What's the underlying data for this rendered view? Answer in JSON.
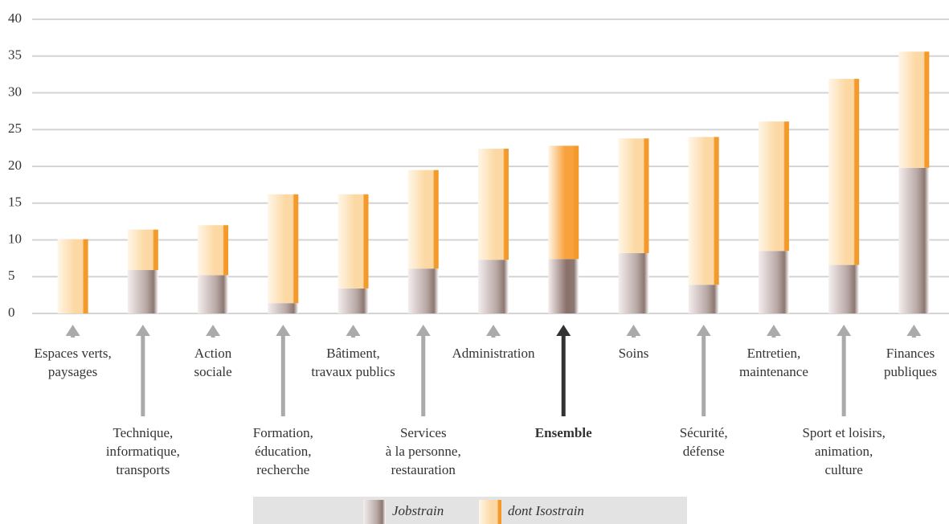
{
  "chart_data": {
    "type": "stacked_bar",
    "categories": [
      [
        "Espaces verts,",
        "paysages"
      ],
      [
        "Technique,",
        "informatique,",
        "transports"
      ],
      [
        "Action",
        "sociale"
      ],
      [
        "Formation,",
        "éducation,",
        "recherche"
      ],
      [
        "Bâtiment,",
        "travaux publics"
      ],
      [
        "Services",
        "à la personne,",
        "restauration"
      ],
      [
        "Administration"
      ],
      [
        "Ensemble"
      ],
      [
        "Soins"
      ],
      [
        "Sécurité,",
        "défense"
      ],
      [
        "Entretien,",
        "maintenance"
      ],
      [
        "Sport et loisirs,",
        "animation,",
        "culture"
      ],
      [
        "Finances",
        "publiques"
      ]
    ],
    "series": [
      {
        "name": "Jobstrain",
        "colors": [
          "#b9a9a6",
          "#b9a9a6",
          "#b9a9a6",
          "#b9a9a6",
          "#b9a9a6",
          "#b9a9a6",
          "#b9a9a6",
          "#8a706a",
          "#b9a9a6",
          "#b9a9a6",
          "#b9a9a6",
          "#b9a9a6",
          "#b9a9a6"
        ],
        "values": [
          0,
          5.9,
          5.2,
          1.4,
          3.4,
          6.1,
          7.3,
          7.4,
          8.2,
          3.9,
          8.5,
          6.6,
          19.8
        ]
      },
      {
        "name": "dont Isostrain",
        "colors": [
          "#fcd9a4",
          "#fcd9a4",
          "#fcd9a4",
          "#fcd9a4",
          "#fcd9a4",
          "#fcd9a4",
          "#fcd9a4",
          "#f7a23c",
          "#fcd9a4",
          "#fcd9a4",
          "#fcd9a4",
          "#fcd9a4",
          "#fcd9a4"
        ],
        "values": [
          10.1,
          5.5,
          6.8,
          14.8,
          12.8,
          13.4,
          15.1,
          15.4,
          15.6,
          20.1,
          17.6,
          25.3,
          15.8
        ]
      }
    ],
    "ylim": [
      0,
      40
    ],
    "yticks": [
      0,
      5,
      10,
      15,
      20,
      25,
      30,
      35,
      40
    ],
    "grid": true,
    "legend": "bottom"
  }
}
